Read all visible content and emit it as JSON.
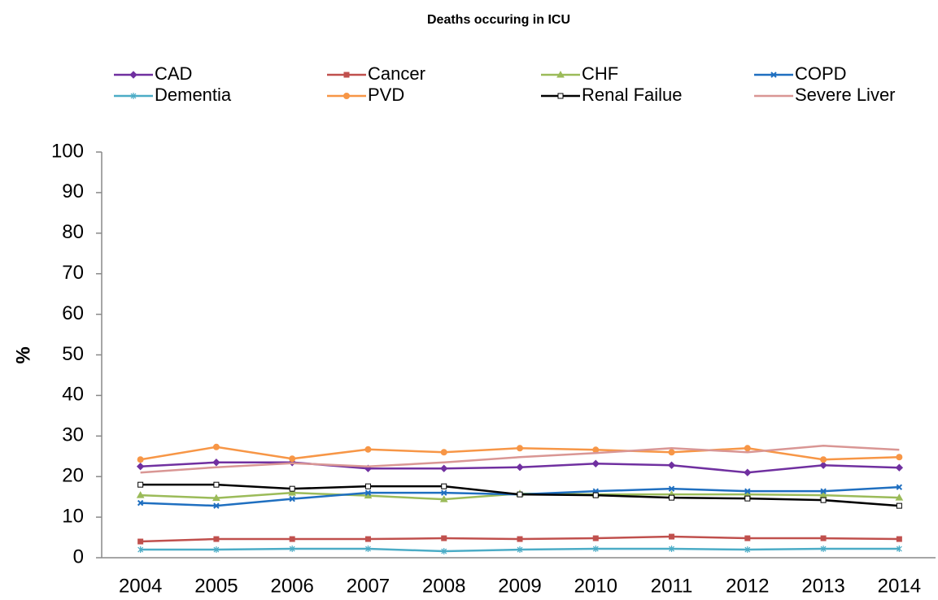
{
  "chart_data": {
    "type": "line",
    "title": "Deaths occuring in ICU",
    "y_label": "%",
    "categories": [
      "2004",
      "2005",
      "2006",
      "2007",
      "2008",
      "2009",
      "2010",
      "2011",
      "2012",
      "2013",
      "2014"
    ],
    "ylim": [
      0,
      100
    ],
    "yticks": [
      0,
      10,
      20,
      30,
      40,
      50,
      60,
      70,
      80,
      90,
      100
    ],
    "grid": false,
    "legend": "top",
    "series": [
      {
        "name": "CAD",
        "color": "#7030a0",
        "marker": "diamond",
        "values": [
          22.5,
          23.5,
          23.5,
          22,
          22,
          22.3,
          23.2,
          22.8,
          21,
          22.8,
          22.2
        ]
      },
      {
        "name": "Cancer",
        "color": "#c0504d",
        "marker": "square",
        "values": [
          4,
          4.6,
          4.6,
          4.6,
          4.8,
          4.6,
          4.8,
          5.2,
          4.8,
          4.8,
          4.6
        ]
      },
      {
        "name": "CHF",
        "color": "#9bbb59",
        "marker": "triangle",
        "values": [
          15.4,
          14.7,
          16,
          15.3,
          14.4,
          15.8,
          15.6,
          15.6,
          15.6,
          15.4,
          14.8
        ]
      },
      {
        "name": "COPD",
        "color": "#1f6fc0",
        "marker": "x",
        "values": [
          13.5,
          12.8,
          14.5,
          16,
          16,
          15.6,
          16.4,
          17,
          16.4,
          16.4,
          17.4
        ]
      },
      {
        "name": "Dementia",
        "color": "#4bacc6",
        "marker": "star",
        "values": [
          2,
          2,
          2.2,
          2.2,
          1.6,
          2,
          2.2,
          2.2,
          2,
          2.2,
          2.2
        ]
      },
      {
        "name": "PVD",
        "color": "#f79646",
        "marker": "circle",
        "values": [
          24.2,
          27.3,
          24.4,
          26.7,
          26,
          27,
          26.6,
          26,
          27,
          24.2,
          24.8
        ]
      },
      {
        "name": "Renal Failue",
        "color": "#000000",
        "marker": "square",
        "values": [
          18,
          18,
          17,
          17.6,
          17.6,
          15.6,
          15.4,
          14.8,
          14.6,
          14.2,
          12.8
        ]
      },
      {
        "name": "Severe Liver",
        "color": "#d99694",
        "marker": "none",
        "values": [
          21,
          22.3,
          23.3,
          22.5,
          23.5,
          24.8,
          25.8,
          27,
          26,
          27.6,
          26.6
        ]
      }
    ]
  }
}
